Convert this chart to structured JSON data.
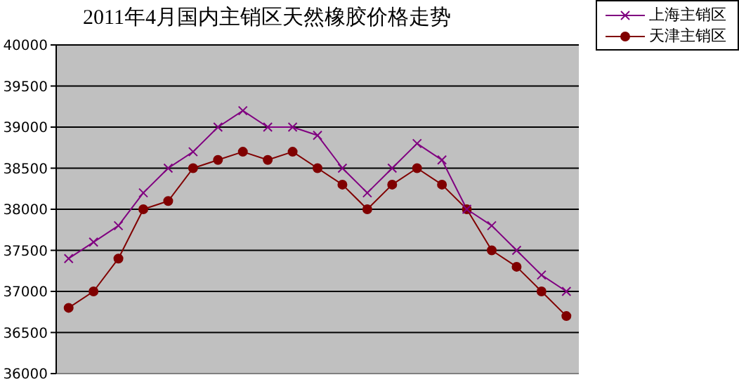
{
  "chart_data": {
    "type": "line",
    "title": "2011年4月国内主销区天然橡胶价格走势",
    "categories": [
      null,
      null,
      null,
      null,
      null,
      null,
      null,
      null,
      null,
      null,
      null,
      null,
      null,
      null,
      null,
      null,
      null,
      null,
      null,
      null,
      null
    ],
    "series": [
      {
        "name": "上海主销区",
        "color": "#800080",
        "marker": "cross",
        "values": [
          37400,
          37600,
          37800,
          38200,
          38500,
          38700,
          39000,
          39200,
          39000,
          39000,
          38900,
          38500,
          38200,
          38500,
          38800,
          38600,
          38000,
          37800,
          37500,
          37200,
          37000
        ]
      },
      {
        "name": "天津主销区",
        "color": "#800000",
        "marker": "circle",
        "values": [
          36800,
          37000,
          37400,
          38000,
          38100,
          38500,
          38600,
          38700,
          38600,
          38700,
          38500,
          38300,
          38000,
          38300,
          38500,
          38300,
          38000,
          37500,
          37300,
          37000,
          36700
        ]
      }
    ],
    "ylim": [
      36000,
      40000
    ],
    "yticks": [
      36000,
      36500,
      37000,
      37500,
      38000,
      38500,
      39000,
      39500,
      40000
    ],
    "grid": "y",
    "legend": "top right"
  }
}
